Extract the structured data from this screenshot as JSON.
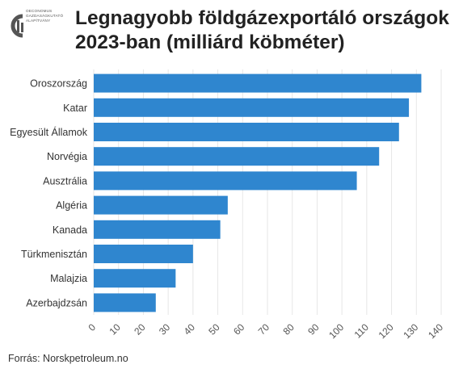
{
  "header": {
    "logo_lines": [
      "OECONOMUS",
      "GAZDASÁGKUTATÓ",
      "ALAPÍTVÁNY"
    ],
    "title": "Legnagyobb földgázexportáló országok 2023-ban (milliárd köbméter)"
  },
  "chart_data": {
    "type": "bar",
    "orientation": "horizontal",
    "title": "Legnagyobb földgázexportáló országok 2023-ban (milliárd köbméter)",
    "categories": [
      "Oroszország",
      "Katar",
      "Egyesült Államok",
      "Norvégia",
      "Ausztrália",
      "Algéria",
      "Kanada",
      "Türkmenisztán",
      "Malajzia",
      "Azerbajdzsán"
    ],
    "values": [
      132,
      127,
      123,
      115,
      106,
      54,
      51,
      40,
      33,
      25
    ],
    "xlim": [
      0,
      140
    ],
    "xticks": [
      0,
      10,
      20,
      30,
      40,
      50,
      60,
      70,
      80,
      90,
      100,
      110,
      120,
      130,
      140
    ],
    "grid": true,
    "bar_color": "#2f86cf"
  },
  "footer": {
    "source": "Forrás: Norskpetroleum.no"
  }
}
